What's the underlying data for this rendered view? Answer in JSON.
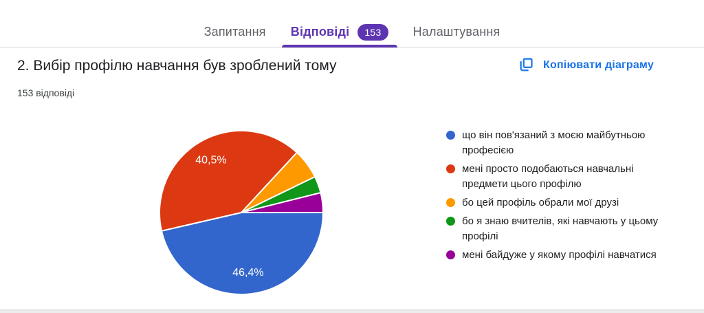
{
  "tabs": {
    "items": [
      {
        "label": "Запитання",
        "active": false
      },
      {
        "label": "Відповіді",
        "active": true,
        "badge": "153"
      },
      {
        "label": "Налаштування",
        "active": false
      }
    ]
  },
  "question": {
    "title": "2. Вибір профілю навчання був зроблений тому",
    "responses_count": "153 відповіді"
  },
  "toolbar": {
    "copy_chart_label": "Копіювати діаграму"
  },
  "colors": {
    "accent_purple": "#5e35b1",
    "chip_purple": "#7b52c7",
    "link_blue": "#1a73e8",
    "tab_inactive": "#5f6368",
    "divider": "#dadce0"
  },
  "chart_data": {
    "type": "pie",
    "title": "2. Вибір профілю навчання був зроблений тому",
    "total_responses": 153,
    "unit": "%",
    "start_angle_deg": 0,
    "direction": "clockwise",
    "legend_position": "right",
    "slices": [
      {
        "label": "що він пов'язаний з моєю майбутньою професією",
        "value": 46.4,
        "display": "46,4%",
        "color": "#3366cc"
      },
      {
        "label": "мені просто подобаються навчальні предмети цього профілю",
        "value": 40.5,
        "display": "40,5%",
        "color": "#dc3912"
      },
      {
        "label": "бо цей профіль обрали мої друзі",
        "value": 5.9,
        "display": "",
        "color": "#ff9900"
      },
      {
        "label": "бо я знаю вчителів, які навчають у цьому профілі",
        "value": 3.3,
        "display": "",
        "color": "#109618"
      },
      {
        "label": "мені байдуже у якому профілі навчатися",
        "value": 3.9,
        "display": "",
        "color": "#990099"
      }
    ]
  }
}
